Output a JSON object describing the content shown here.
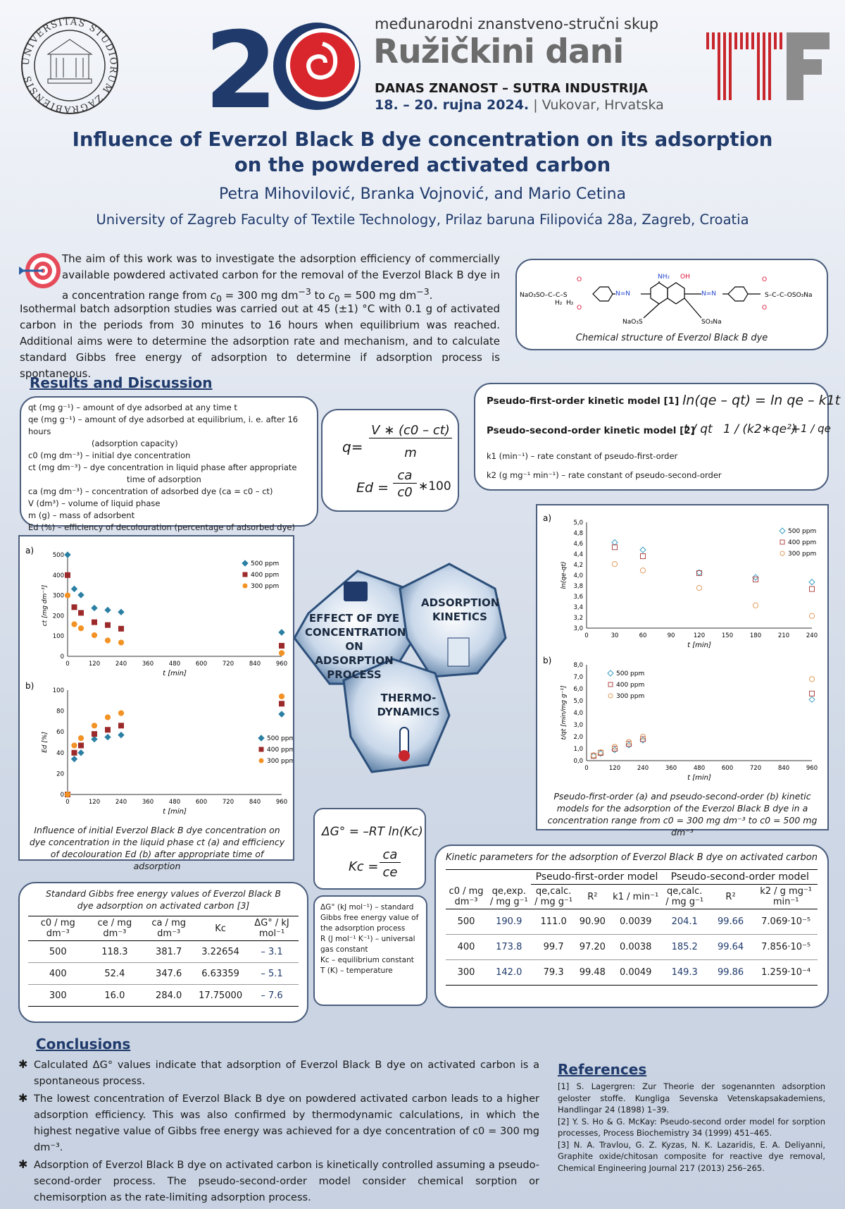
{
  "header": {
    "seal_text": "UNIVERSITAS STUDIORUM ZAGRABIENSIS MDCLXIX",
    "number": "20",
    "conference": "međunarodni znanstveno-stručni skup",
    "name": "Ružičkini dani",
    "motto": "DANAS ZNANOST – SUTRA INDUSTRIJA",
    "date": "18. – 20. rujna 2024.",
    "place": "| Vukovar, Hrvatska"
  },
  "title": {
    "line1": "Influence of Everzol Black B dye concentration on its adsorption",
    "line2": "on the powdered activated carbon",
    "authors": "Petra Mihovilović, Branka Vojnović, and Mario Cetina",
    "affiliation": "University of Zagreb Faculty of Textile Technology, Prilaz baruna Filipovića 28a, Zagreb, Croatia"
  },
  "intro": {
    "p1a": "The aim of this work was to investigate the adsorption efficiency of commercially available powdered activated carbon for the removal of the Everzol Black B dye in a concentration range from ",
    "c0": "c",
    "sub0": "0",
    "eq300": " = 300 mg dm",
    "m3": "−3",
    "to": " to ",
    "eq500": " = 500 mg dm",
    "end": ".",
    "p2": "Isothermal batch adsorption studies was carried out at 45 (±1) °C with 0.1 g of activated carbon in the periods from 30 minutes to 16 hours when equilibrium was reached. Additional aims were to determine the adsorption rate and mechanism, and to calculate standard Gibbs free energy of adsorption to determine if adsorption process is spontaneous."
  },
  "structure": {
    "caption": "Chemical structure of Everzol Black B dye",
    "left_group": "NaO₃SO–C–C–S",
    "h2a": "H₂",
    "h2b": "H₂",
    "o": "O",
    "nh2": "NH₂",
    "oh": "OH",
    "n_n": "N=N",
    "so3na": "NaO₃S",
    "so3na2": "SO₃Na",
    "right_group": "S–C–C–OSO₃Na"
  },
  "results_heading": "Results and Discussion",
  "definitions": [
    "qt (mg g⁻¹) – amount of dye adsorbed at any time t",
    "qe (mg g⁻¹) – amount of dye adsorbed at equilibrium, i. e. after 16 hours",
    "(adsorption capacity)",
    "c0 (mg dm⁻³) – initial dye concentration",
    "ct (mg dm⁻³) – dye concentration in liquid phase after appropriate",
    "time of adsorption",
    "ca (mg dm⁻³) – concentration of adsorbed dye (ca = c0 – ct)",
    "V (dm³) – volume of liquid phase",
    "m (g) – mass of adsorbent",
    "Ed (%) – efficiency of decolouration (percentage of adsorbed dye)"
  ],
  "eq1": {
    "q": "q=",
    "num": "V ∗ (c0 – ct)",
    "den": "m",
    "ed": "Ed =",
    "ca": "ca",
    "c0": "c0",
    "times": "∗100"
  },
  "kinetics": {
    "pfo_label": "Pseudo-first-order kinetic model [1]",
    "pfo_eq": "ln(qe – qt) = ln qe – k1t",
    "pso_label": "Pseudo-second-order kinetic model [2]",
    "pso_left": "t / qt",
    "pso_mid": "1 / (k2∗qe²)",
    "pso_right": "1 / qe",
    "k1": "k1 (min⁻¹) –  rate constant of pseudo-first-order",
    "k2": "k2 (g mg⁻¹ min⁻¹) – rate constant of pseudo-second-order"
  },
  "hex": {
    "effect": "EFFECT OF DYE CONCENTRATION ON ADSORPTION PROCESS",
    "kinetics": "ADSORPTION KINETICS",
    "thermo": "THERMO- DYNAMICS"
  },
  "left_chart_caption": "Influence of initial Everzol Black B dye concentration on dye concentration in the liquid phase ct (a) and efficiency of decolouration Ed (b) after appropriate time of adsorption",
  "right_chart_caption": "Pseudo-first-order (a) and pseudo-second-order (b) kinetic models for the adsorption of the Everzol Black B dye in a concentration range from c0 = 300 mg dm⁻³ to c0 = 500 mg dm⁻³",
  "chart_data": [
    {
      "id": "a_left",
      "type": "scatter",
      "panel": "a)",
      "xlabel": "t [min]",
      "ylabel": "ct [mg dm⁻³]",
      "xticks": [
        0,
        120,
        240,
        360,
        480,
        600,
        720,
        840,
        960
      ],
      "yticks": [
        0,
        100,
        200,
        300,
        400,
        500
      ],
      "xlim": [
        0,
        960
      ],
      "ylim": [
        0,
        500
      ],
      "series": [
        {
          "name": "500 ppm",
          "color": "#2b7fa3",
          "marker": "diamond",
          "x": [
            0,
            30,
            60,
            120,
            180,
            240,
            960
          ],
          "y": [
            500,
            332,
            302,
            238,
            228,
            218,
            118
          ]
        },
        {
          "name": "400 ppm",
          "color": "#9c2a2a",
          "marker": "square",
          "x": [
            0,
            30,
            60,
            120,
            180,
            240,
            960
          ],
          "y": [
            400,
            242,
            214,
            168,
            154,
            136,
            52
          ]
        },
        {
          "name": "300 ppm",
          "color": "#f29224",
          "marker": "circle",
          "x": [
            0,
            30,
            60,
            120,
            180,
            240,
            960
          ],
          "y": [
            300,
            158,
            138,
            104,
            78,
            68,
            16
          ]
        }
      ]
    },
    {
      "id": "b_left",
      "type": "scatter",
      "panel": "b)",
      "xlabel": "t [min]",
      "ylabel": "Ed [%]",
      "xticks": [
        0,
        120,
        240,
        360,
        480,
        600,
        720,
        840,
        960
      ],
      "yticks": [
        0,
        20,
        40,
        60,
        80,
        100
      ],
      "xlim": [
        0,
        960
      ],
      "ylim": [
        0,
        100
      ],
      "series": [
        {
          "name": "500 ppm",
          "color": "#2b7fa3",
          "marker": "diamond",
          "x": [
            0,
            30,
            60,
            120,
            180,
            240,
            960
          ],
          "y": [
            0,
            34,
            40,
            53,
            55,
            57,
            77
          ]
        },
        {
          "name": "400 ppm",
          "color": "#9c2a2a",
          "marker": "square",
          "x": [
            0,
            30,
            60,
            120,
            180,
            240,
            960
          ],
          "y": [
            0,
            40,
            47,
            58,
            62,
            66,
            87
          ]
        },
        {
          "name": "300 ppm",
          "color": "#f29224",
          "marker": "circle",
          "x": [
            0,
            30,
            60,
            120,
            180,
            240,
            960
          ],
          "y": [
            0,
            47,
            54,
            66,
            74,
            78,
            94
          ]
        }
      ]
    },
    {
      "id": "a_right",
      "type": "scatter",
      "panel": "a)",
      "xlabel": "t [min]",
      "ylabel": "ln(qe-qt)",
      "xticks": [
        0,
        30,
        60,
        90,
        120,
        150,
        180,
        210,
        240
      ],
      "yticks": [
        "3,0",
        "3,2",
        "3,4",
        "3,6",
        "3,8",
        "4,0",
        "4,2",
        "4,4",
        "4,6",
        "4,8",
        "5,0"
      ],
      "xlim": [
        0,
        240
      ],
      "ylim": [
        3.0,
        5.0
      ],
      "series": [
        {
          "name": "500 ppm",
          "color": "#3aa0c2",
          "marker": "diamond-open",
          "x": [
            30,
            60,
            120,
            180,
            240
          ],
          "y": [
            4.62,
            4.48,
            4.05,
            3.96,
            3.87
          ]
        },
        {
          "name": "400 ppm",
          "color": "#b04848",
          "marker": "square-open",
          "x": [
            30,
            60,
            120,
            180,
            240
          ],
          "y": [
            4.53,
            4.36,
            4.04,
            3.92,
            3.74
          ]
        },
        {
          "name": "300 ppm",
          "color": "#e09a5a",
          "marker": "circle-open",
          "x": [
            30,
            60,
            120,
            180,
            240
          ],
          "y": [
            4.21,
            4.09,
            3.76,
            3.43,
            3.23
          ]
        }
      ]
    },
    {
      "id": "b_right",
      "type": "scatter",
      "panel": "b)",
      "xlabel": "t [min]",
      "ylabel": "t/qt [min/mg g⁻¹]",
      "xticks": [
        0,
        120,
        240,
        360,
        480,
        600,
        720,
        840,
        960
      ],
      "yticks": [
        "0,0",
        "1,0",
        "2,0",
        "3,0",
        "4,0",
        "5,0",
        "6,0",
        "7,0",
        "8,0"
      ],
      "xlim": [
        0,
        960
      ],
      "ylim": [
        0,
        8
      ],
      "series": [
        {
          "name": "500 ppm",
          "color": "#3aa0c2",
          "marker": "diamond-open",
          "x": [
            30,
            60,
            120,
            180,
            240,
            960
          ],
          "y": [
            0.4,
            0.6,
            0.9,
            1.3,
            1.7,
            5.1
          ]
        },
        {
          "name": "400 ppm",
          "color": "#b04848",
          "marker": "square-open",
          "x": [
            30,
            60,
            120,
            180,
            240,
            960
          ],
          "y": [
            0.4,
            0.65,
            1.0,
            1.4,
            1.8,
            5.6
          ]
        },
        {
          "name": "300 ppm",
          "color": "#e09a5a",
          "marker": "circle-open",
          "x": [
            30,
            60,
            120,
            180,
            240,
            960
          ],
          "y": [
            0.45,
            0.7,
            1.15,
            1.55,
            2.0,
            6.8
          ]
        }
      ]
    }
  ],
  "gibbs_table": {
    "caption": "Standard Gibbs free energy values of Everzol Black B dye adsorption on activated carbon [3]",
    "headers": [
      "c0 / mg dm⁻³",
      "ce / mg dm⁻³",
      "ca / mg dm⁻³",
      "Kc",
      "ΔG° / kJ mol⁻¹"
    ],
    "rows": [
      [
        "500",
        "118.3",
        "381.7",
        "3.22654",
        "– 3.1"
      ],
      [
        "400",
        "52.4",
        "347.6",
        "6.63359",
        "– 5.1"
      ],
      [
        "300",
        "16.0",
        "284.0",
        "17.75000",
        "– 7.6"
      ]
    ]
  },
  "gibbs_eq": {
    "dg": "ΔG° = –RT ln(Kc)",
    "kc": "Kc =",
    "ca": "ca",
    "ce": "ce"
  },
  "gibbs_defs": [
    "ΔG° (kJ mol⁻¹) – standard Gibbs free energy value of the adsorption process",
    "R (J mol⁻¹ K⁻¹) – universal gas constant",
    "Kc – equilibrium constant",
    "T (K) – temperature"
  ],
  "kin_table": {
    "caption": "Kinetic parameters for the adsorption of Everzol Black B dye on activated carbon",
    "group1": "Pseudo-first-order model",
    "group2": "Pseudo-second-order model",
    "headers": [
      "c0 / mg dm⁻³",
      "qe,exp. / mg g⁻¹",
      "qe,calc. / mg g⁻¹",
      "R²",
      "k1 / min⁻¹",
      "qe,calc. / mg g⁻¹",
      "R²",
      "k2 / g mg⁻¹ min⁻¹"
    ],
    "rows": [
      [
        "500",
        "190.9",
        "111.0",
        "90.90",
        "0.0039",
        "204.1",
        "99.66",
        "7.069·10⁻⁵"
      ],
      [
        "400",
        "173.8",
        "99.7",
        "97.20",
        "0.0038",
        "185.2",
        "99.64",
        "7.856·10⁻⁵"
      ],
      [
        "300",
        "142.0",
        "79.3",
        "99.48",
        "0.0049",
        "149.3",
        "99.86",
        "1.259·10⁻⁴"
      ]
    ]
  },
  "conclusions": {
    "heading": "Conclusions",
    "items": [
      "Calculated ΔG° values indicate that adsorption of Everzol Black B dye on activated carbon is a spontaneous process.",
      "The lowest concentration of Everzol Black B dye on powdered activated carbon leads to a higher adsorption efficiency. This was also confirmed by thermodynamic calculations, in which the highest negative value of Gibbs free energy was achieved for a dye concentration of c0 = 300 mg dm⁻³.",
      "Adsorption of Everzol Black B dye on activated carbon is kinetically controlled assuming a pseudo-second-order process. The pseudo-second-order model consider chemical sorption or chemisorption as the rate-limiting adsorption process."
    ]
  },
  "references": {
    "heading": "References",
    "items": [
      "[1] S. Lagergren: Zur Theorie der sogenannten adsorption geloster stoffe. Kungliga Sevenska Vetenskapsakademiens, Handlingar 24 (1898) 1–39.",
      "[2] Y. S. Ho & G. McKay: Pseudo-second order model for sorption processes, Process Biochemistry 34 (1999) 451–465.",
      "[3] N. A. Travlou, G. Z. Kyzas, N. K. Lazaridis, E. A. Deliyanni, Graphite oxide/chitosan composite for reactive dye removal, Chemical Engineering Journal 217 (2013) 256–265."
    ]
  },
  "colors": {
    "navy": "#1f3a6b",
    "teal": "#2b7fa3",
    "maroon": "#9c2a2a",
    "orange": "#f29224",
    "ttf_red": "#c8262c"
  }
}
